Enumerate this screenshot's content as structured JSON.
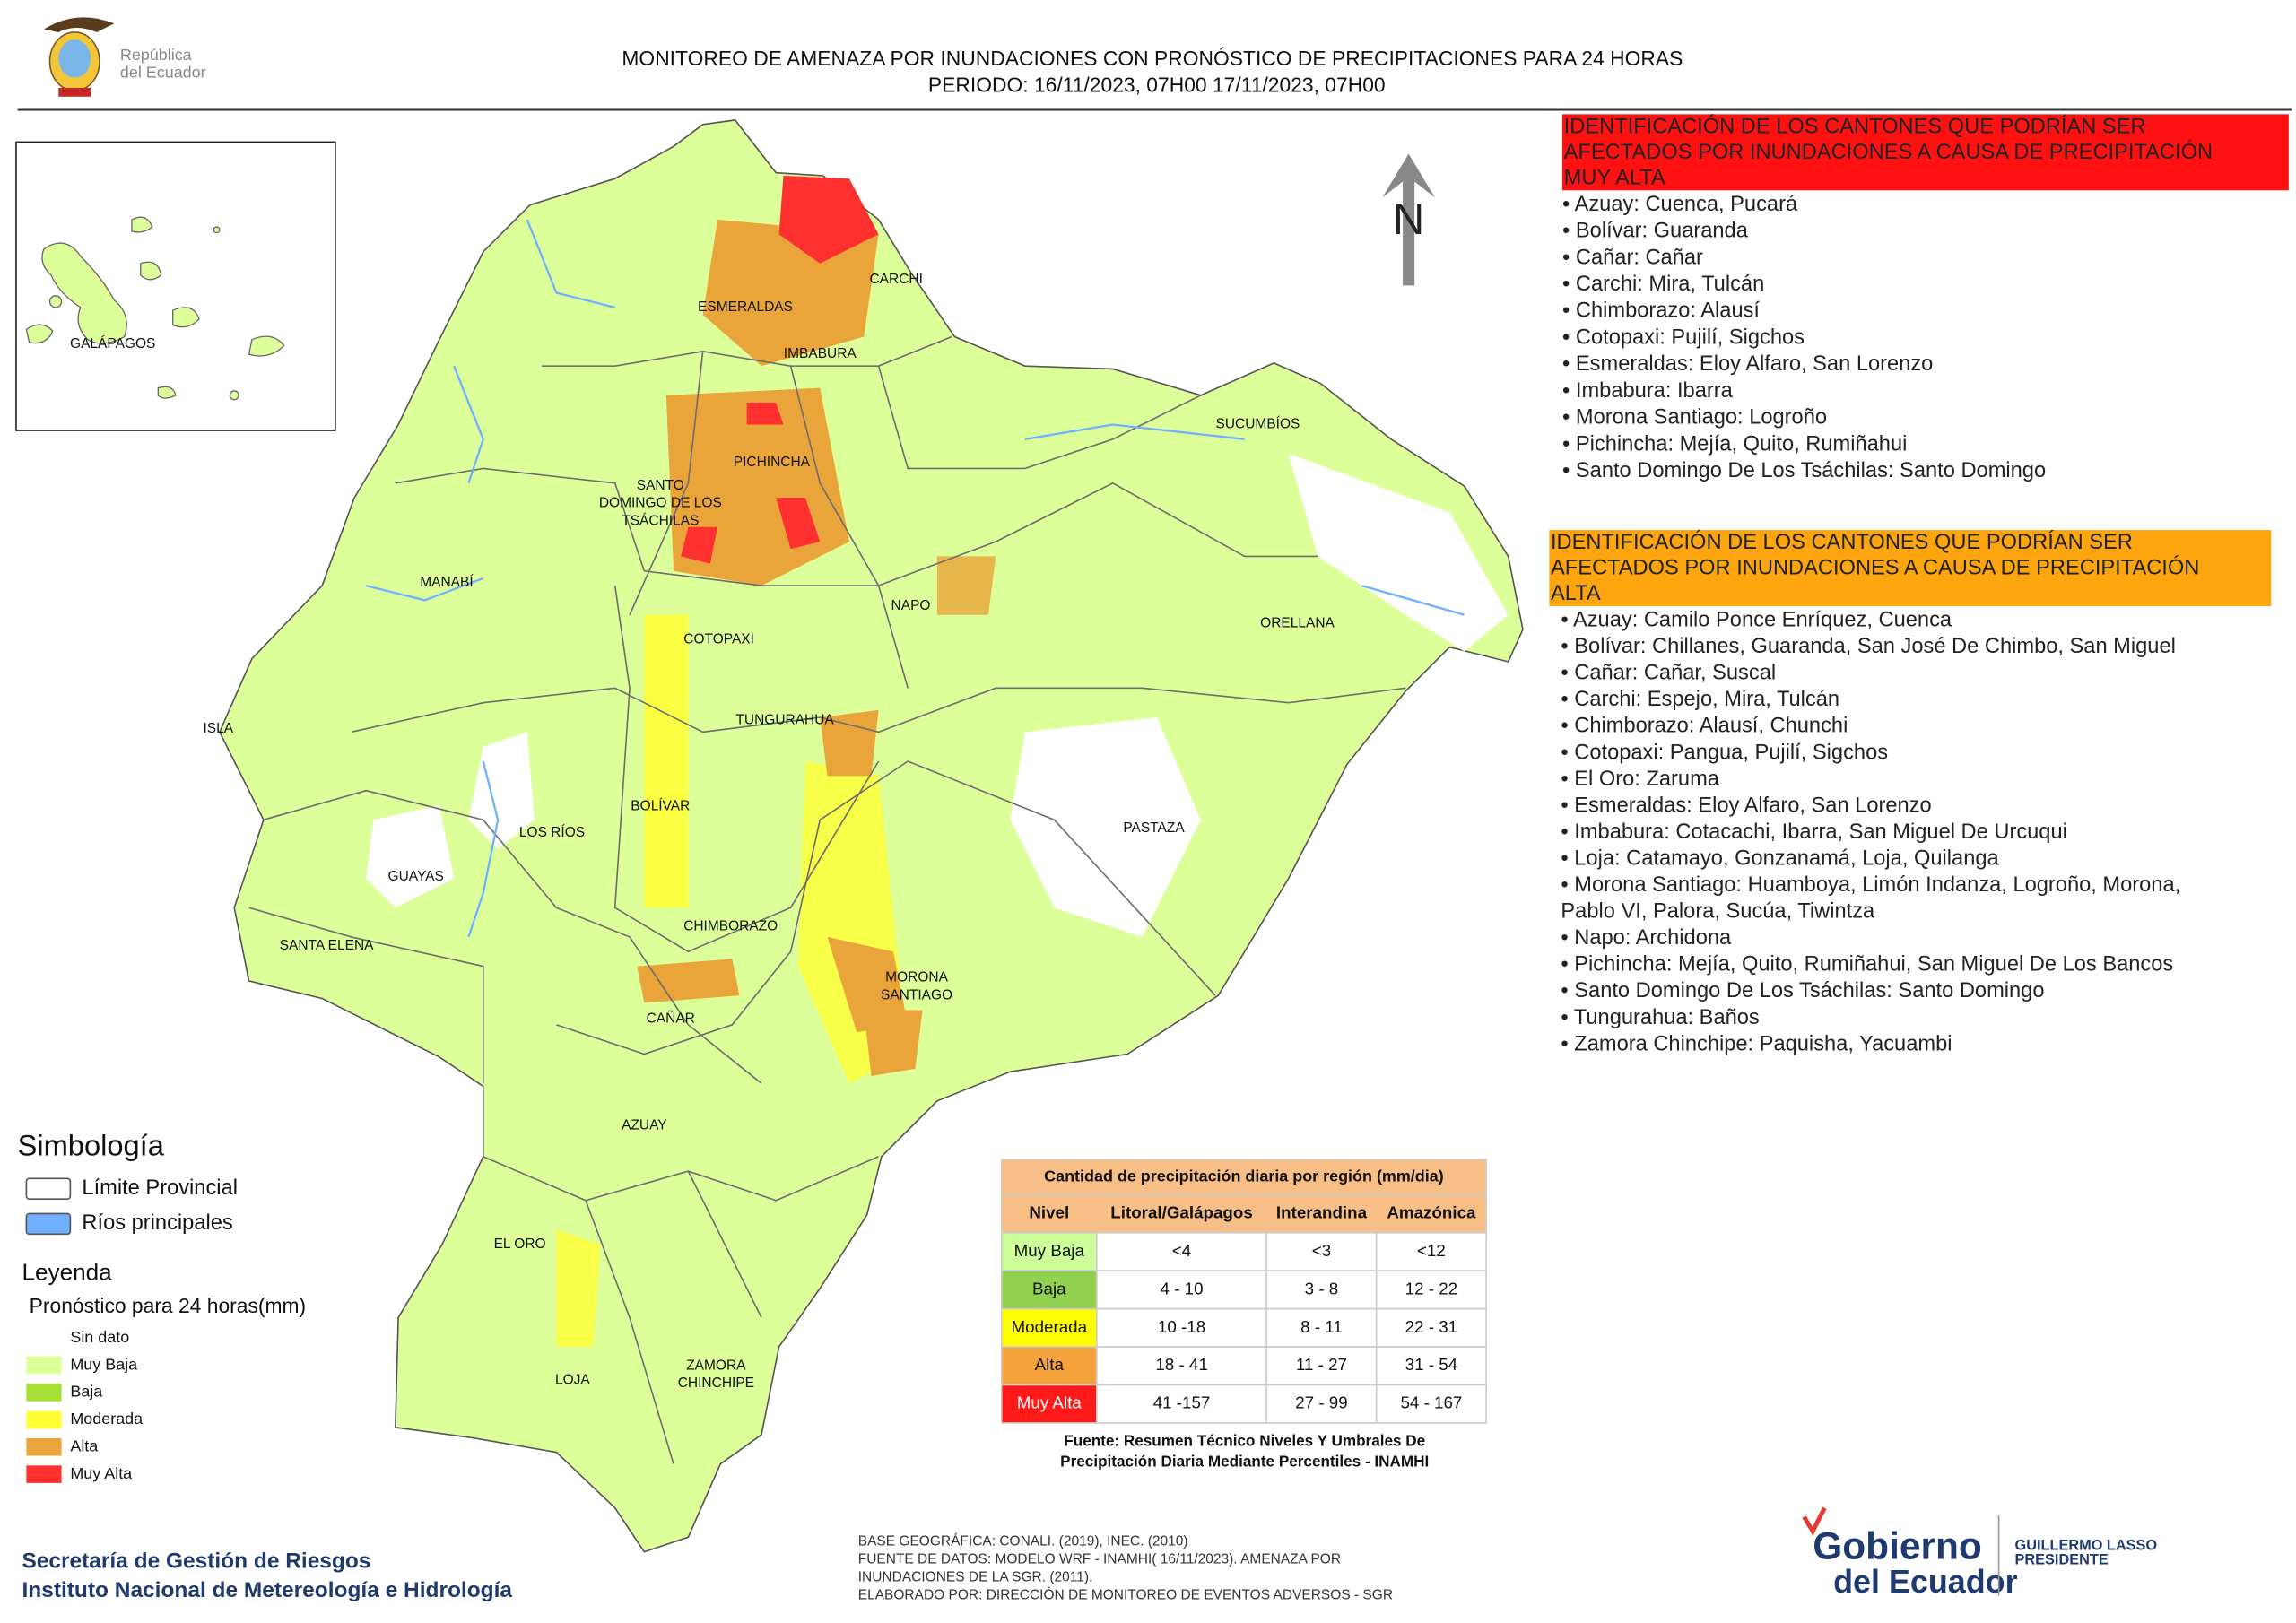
{
  "header": {
    "logo_lines": [
      "República",
      "del Ecuador"
    ],
    "title": "MONITOREO DE AMENAZA POR INUNDACIONES  CON PRONÓSTICO DE  PRECIPITACIONES PARA 24 HORAS",
    "period": "PERIODO: 16/11/2023, 07H00 17/11/2023, 07H00"
  },
  "north": "N",
  "map_labels": [
    [
      "ESMERALDAS"
    ],
    [
      "CARCHI"
    ],
    [
      "IMBABURA"
    ],
    [
      "SUCUMBÍOS"
    ],
    [
      "PICHINCHA"
    ],
    [
      "SANTO",
      "DOMINGO DE LOS",
      "TSÁCHILAS"
    ],
    [
      "MANABÍ"
    ],
    [
      "NAPO"
    ],
    [
      "ORELLANA"
    ],
    [
      "COTOPAXI"
    ],
    [
      "ISLA"
    ],
    [
      "TUNGURAHUA"
    ],
    [
      "BOLÍVAR"
    ],
    [
      "PASTAZA"
    ],
    [
      "LOS RÍOS"
    ],
    [
      "GUAYAS"
    ],
    [
      "CHIMBORAZO"
    ],
    [
      "SANTA ELENA"
    ],
    [
      "MORONA",
      "SANTIAGO"
    ],
    [
      "CAÑAR"
    ],
    [
      "AZUAY"
    ],
    [
      "EL ORO"
    ],
    [
      "ZAMORA",
      "CHINCHIPE"
    ],
    [
      "LOJA"
    ],
    [
      "GALÁPAGOS"
    ]
  ],
  "very_high": {
    "title_lines": [
      "IDENTIFICACIÓN DE LOS CANTONES QUE PODRÍAN SER",
      "AFECTADOS POR INUNDACIONES  A CAUSA DE PRECIPITACIÓN",
      "MUY ALTA"
    ],
    "items": [
      "• Azuay: Cuenca, Pucará",
      "• Bolívar: Guaranda",
      "• Cañar: Cañar",
      "• Carchi: Mira, Tulcán",
      "• Chimborazo: Alausí",
      "• Cotopaxi: Pujilí, Sigchos",
      "• Esmeraldas: Eloy Alfaro, San Lorenzo",
      "• Imbabura: Ibarra",
      "• Morona Santiago: Logroño",
      "• Pichincha: Mejía, Quito, Rumiñahui",
      "• Santo Domingo De Los Tsáchilas: Santo Domingo"
    ]
  },
  "high": {
    "title_lines": [
      "IDENTIFICACIÓN DE LOS CANTONES QUE  PODRÍAN SER",
      "AFECTADOS POR INUNDACIONES  A CAUSA DE PRECIPITACIÓN",
      "ALTA"
    ],
    "items": [
      "• Azuay: Camilo Ponce Enríquez, Cuenca",
      "• Bolívar: Chillanes, Guaranda, San José De Chimbo, San Miguel",
      "• Cañar: Cañar, Suscal",
      "• Carchi: Espejo, Mira, Tulcán",
      "• Chimborazo: Alausí, Chunchi",
      "• Cotopaxi: Pangua, Pujilí, Sigchos",
      "• El Oro: Zaruma",
      "• Esmeraldas: Eloy Alfaro, San Lorenzo",
      "• Imbabura: Cotacachi, Ibarra, San Miguel De Urcuqui",
      "• Loja: Catamayo, Gonzanamá, Loja, Quilanga",
      "• Morona Santiago: Huamboya, Limón Indanza, Logroño, Morona,",
      "Pablo VI, Palora, Sucúa, Tiwintza",
      "• Napo: Archidona",
      "• Pichincha: Mejía, Quito, Rumiñahui, San Miguel De Los Bancos",
      "• Santo Domingo De Los Tsáchilas: Santo Domingo",
      "• Tungurahua: Baños",
      "• Zamora Chinchipe: Paquisha, Yacuambi"
    ]
  },
  "simbologia": {
    "title": "Simbología",
    "items": [
      {
        "label": "Límite Provincial",
        "color": "#ffffff"
      },
      {
        "label": "Ríos principales",
        "color": "#6fb0ff"
      }
    ]
  },
  "leyenda": {
    "title": "Leyenda",
    "subtitle": "Pronóstico para 24 horas(mm)",
    "items": [
      {
        "label": "Sin dato",
        "color": "#ffffff"
      },
      {
        "label": "Muy Baja",
        "color": "#ddff9a"
      },
      {
        "label": "Baja",
        "color": "#a6e034"
      },
      {
        "label": "Moderada",
        "color": "#ffff33"
      },
      {
        "label": "Alta",
        "color": "#eaa53a"
      },
      {
        "label": "Muy Alta",
        "color": "#ff3030"
      }
    ]
  },
  "table": {
    "title": "Cantidad de precipitación diaria por región (mm/dia)",
    "headers": [
      "Nivel",
      "Litoral/Galápagos",
      "Interandina",
      "Amazónica"
    ],
    "rows": [
      [
        "Muy Baja",
        "<4",
        "<3",
        "<12"
      ],
      [
        "Baja",
        "4 - 10",
        "3 - 8",
        "12 - 22"
      ],
      [
        "Moderada",
        "10 -18",
        "8 - 11",
        "22 - 31"
      ],
      [
        "Alta",
        "18 - 41",
        "11 - 27",
        "31 - 54"
      ],
      [
        "Muy Alta",
        "41 -157",
        "27 - 99",
        "54 - 167"
      ]
    ],
    "row_colors": [
      "#ccff99",
      "#92d050",
      "#ffff00",
      "#f4a23c",
      "#ff1a1a"
    ],
    "source_lines": [
      "Fuente: Resumen Técnico Niveles Y Umbrales De",
      "Precipitación Diaria Mediante Percentiles - INAMHI"
    ]
  },
  "footer": {
    "org_lines": [
      "Secretaría de Gestión de Riesgos",
      "Instituto Nacional de Metereología e Hidrología"
    ],
    "credits": [
      "BASE GEOGRÁFICA: CONALI. (2019), INEC. (2010)",
      "FUENTE DE DATOS: MODELO WRF - INAMHI( 16/11/2023).  AMENAZA POR",
      "INUNDACIONES DE LA SGR. (2011).",
      "ELABORADO POR: DIRECCIÓN DE MONITOREO DE EVENTOS ADVERSOS - SGR"
    ],
    "gov_lines": [
      "Gobierno",
      "del Ecuador"
    ],
    "president_lines": [
      "GUILLERMO LASSO",
      "PRESIDENTE"
    ]
  }
}
